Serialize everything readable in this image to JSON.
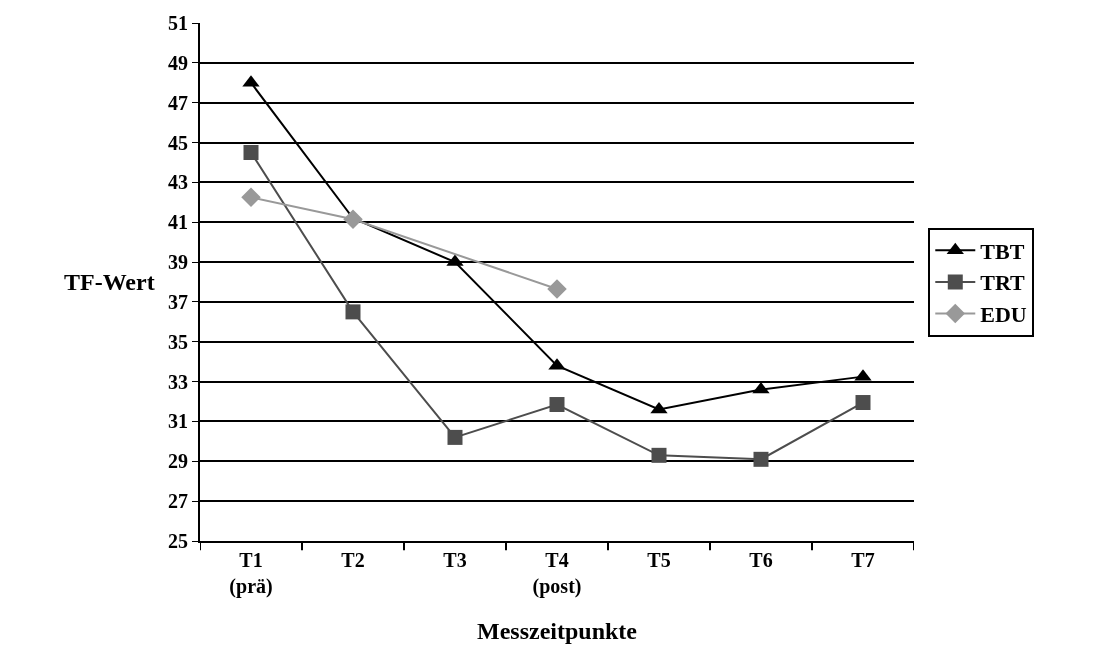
{
  "chart_data": {
    "type": "line",
    "xlabel": "Messzeitpunkte",
    "ylabel": "TF-Wert",
    "categories": [
      "T1\n(prä)",
      "T2",
      "T3",
      "T4\n(post)",
      "T5",
      "T6",
      "T7"
    ],
    "series": [
      {
        "name": "TBT",
        "color": "#000000",
        "marker": "triangle",
        "values": [
          48.0,
          41.2,
          39.0,
          33.8,
          31.6,
          32.6,
          33.25
        ]
      },
      {
        "name": "TRT",
        "color": "#4d4d4d",
        "marker": "square",
        "values": [
          44.5,
          36.5,
          30.2,
          31.85,
          29.3,
          29.1,
          31.95
        ]
      },
      {
        "name": "EDU",
        "color": "#999999",
        "marker": "diamond",
        "values": [
          42.25,
          41.15,
          null,
          37.65,
          null,
          null,
          null
        ]
      }
    ],
    "ylim": [
      25,
      51
    ],
    "yticks": [
      25,
      27,
      29,
      31,
      33,
      35,
      37,
      39,
      41,
      43,
      45,
      47,
      49,
      51
    ],
    "grid": "y",
    "legend": "right",
    "line_style": "solid"
  }
}
